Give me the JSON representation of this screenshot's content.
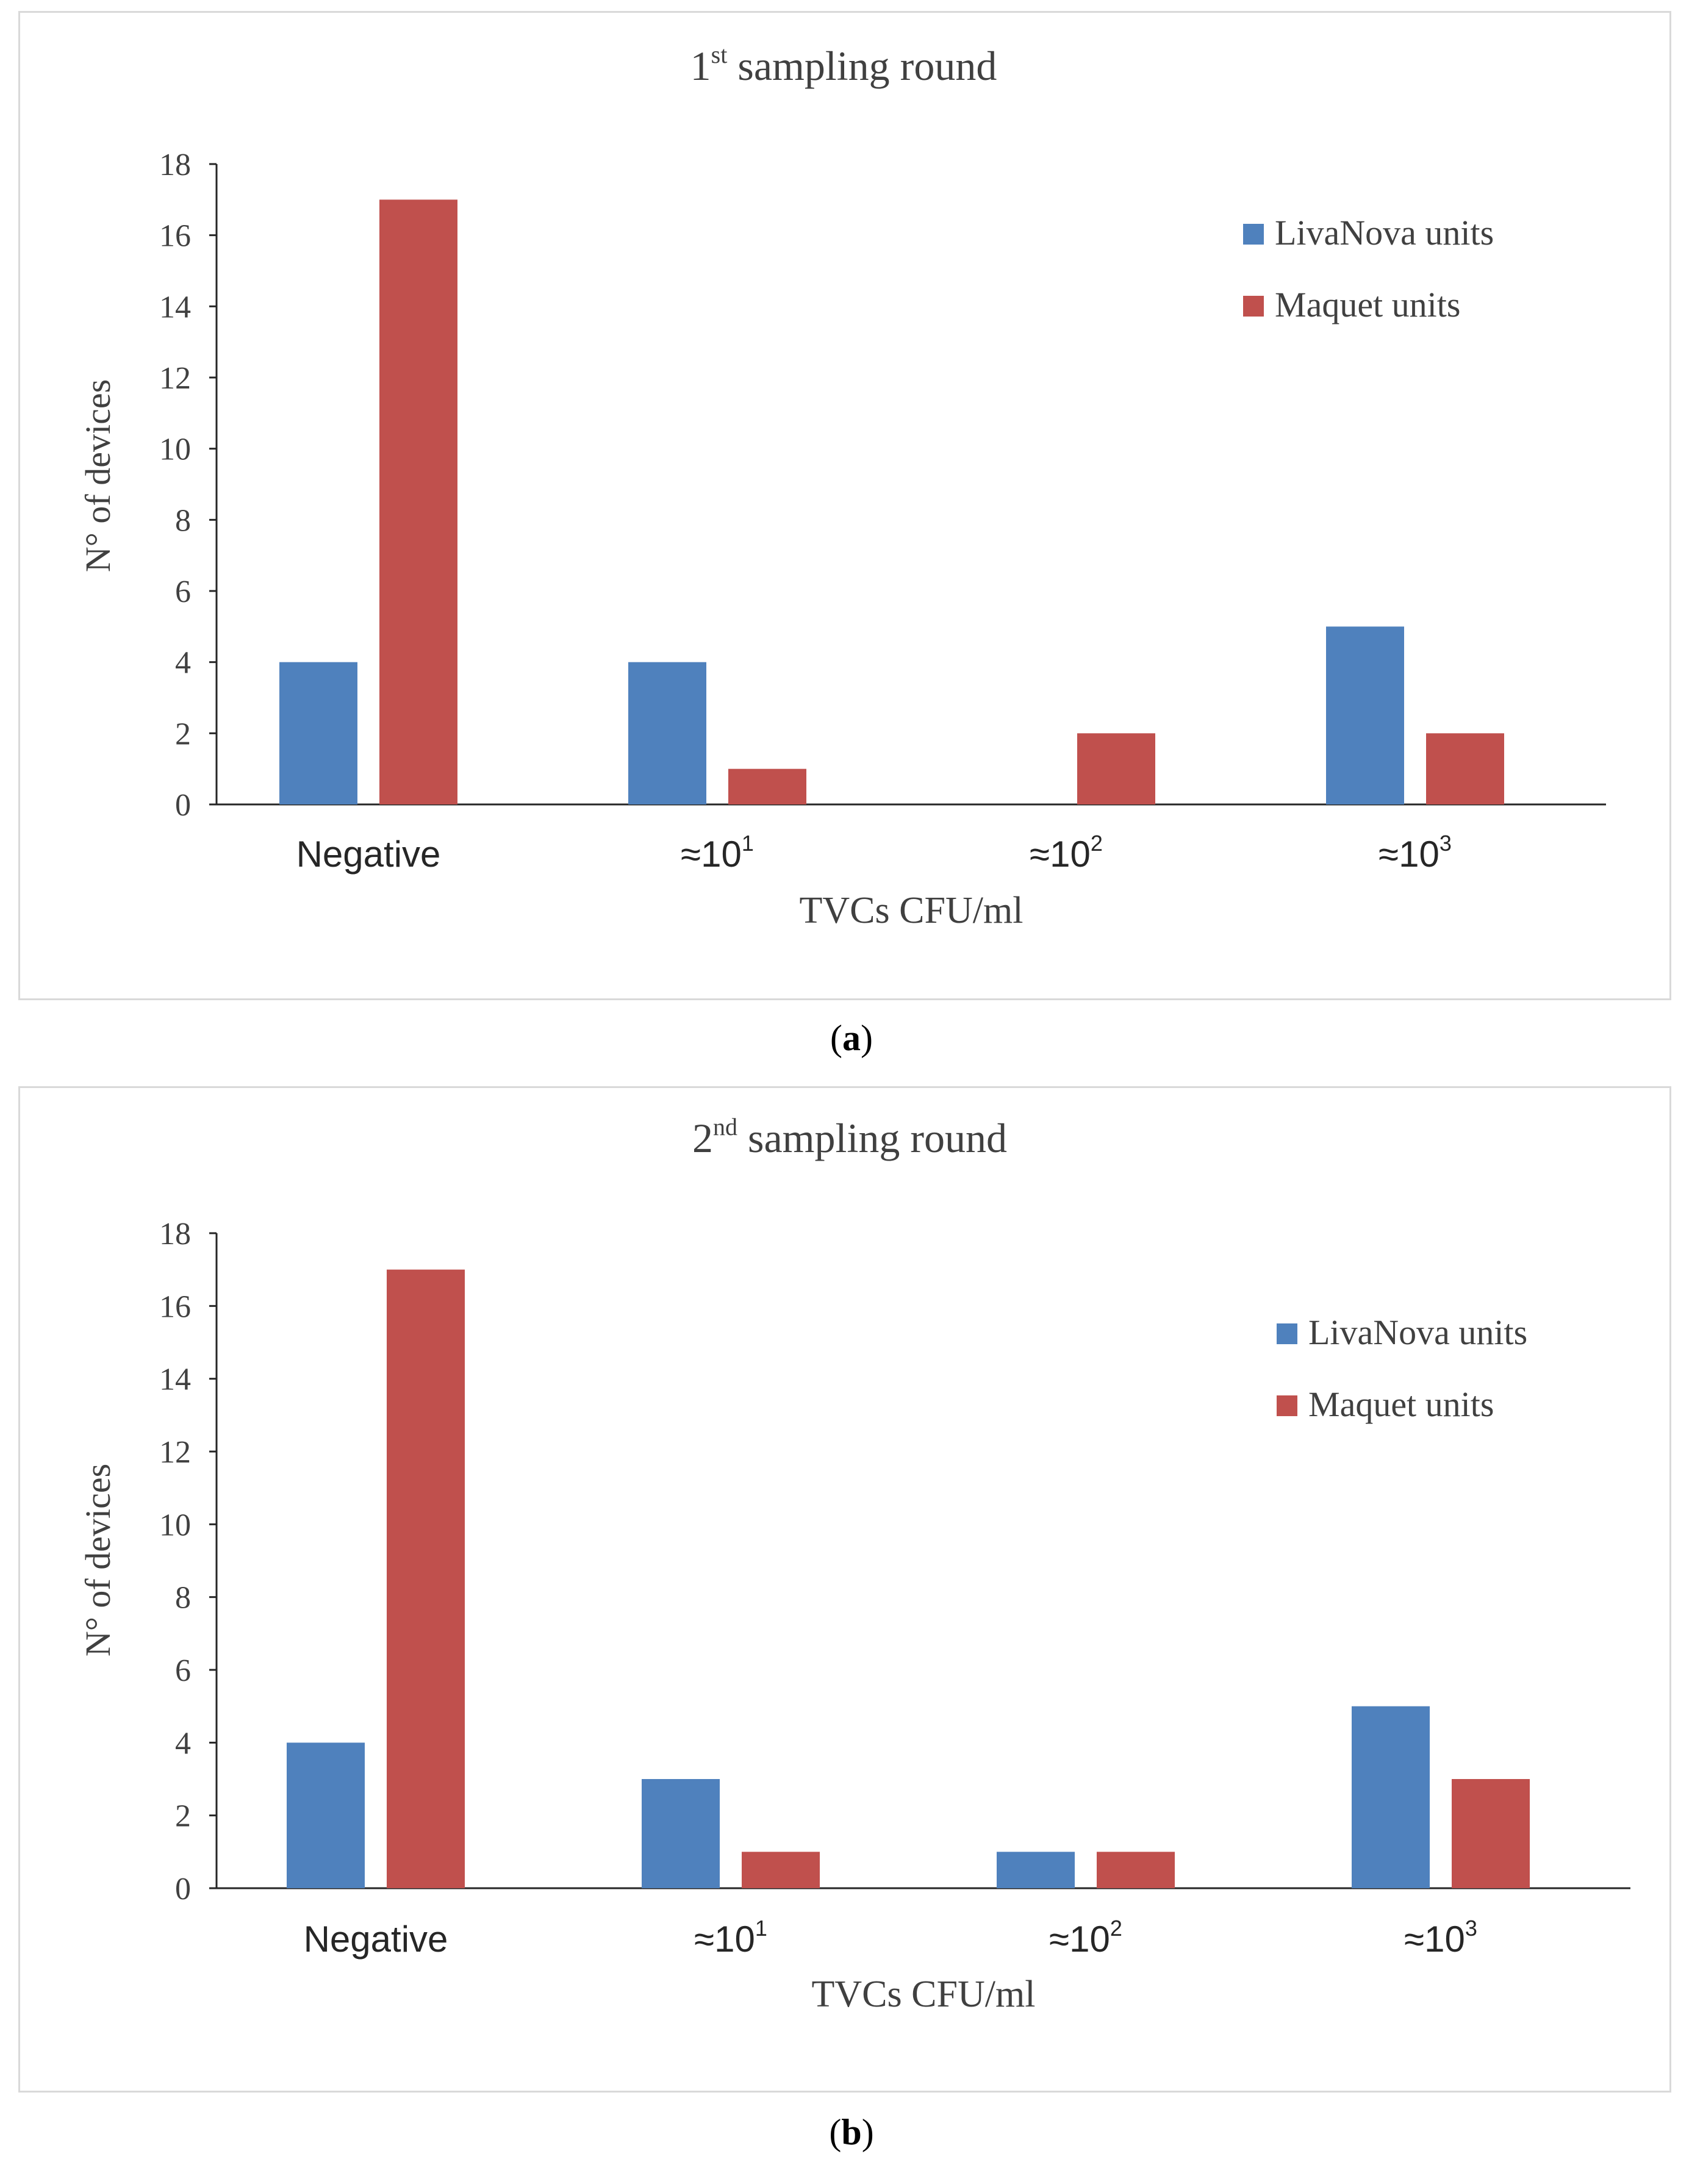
{
  "chart_data": [
    {
      "type": "bar",
      "title_main": "1",
      "title_sup": "st",
      "title_rest": " sampling round",
      "caption_letter": "a",
      "categories": [
        {
          "base": "Negative",
          "sup": ""
        },
        {
          "base": "≈10",
          "sup": "1"
        },
        {
          "base": "≈10",
          "sup": "2"
        },
        {
          "base": "≈10",
          "sup": "3"
        }
      ],
      "series": [
        {
          "name": "LivaNova units",
          "color": "#4f81bd",
          "values": [
            4,
            4,
            0,
            5
          ]
        },
        {
          "name": "Maquet units",
          "color": "#c0504d",
          "values": [
            17,
            1,
            2,
            2
          ]
        }
      ],
      "xlabel": "TVCs CFU/ml",
      "ylabel": "N° of devices",
      "ylim": [
        0,
        18
      ],
      "yticks": [
        0,
        2,
        4,
        6,
        8,
        10,
        12,
        14,
        16,
        18
      ],
      "legend": "top-right"
    },
    {
      "type": "bar",
      "title_main": "2",
      "title_sup": "nd",
      "title_rest": " sampling round",
      "caption_letter": "b",
      "categories": [
        {
          "base": "Negative",
          "sup": ""
        },
        {
          "base": "≈10",
          "sup": "1"
        },
        {
          "base": "≈10",
          "sup": "2"
        },
        {
          "base": "≈10",
          "sup": "3"
        }
      ],
      "series": [
        {
          "name": "LivaNova units",
          "color": "#4f81bd",
          "values": [
            4,
            3,
            1,
            5
          ]
        },
        {
          "name": "Maquet units",
          "color": "#c0504d",
          "values": [
            17,
            1,
            1,
            3
          ]
        }
      ],
      "xlabel": "TVCs CFU/ml",
      "ylabel": "N° of devices",
      "ylim": [
        0,
        18
      ],
      "yticks": [
        0,
        2,
        4,
        6,
        8,
        10,
        12,
        14,
        16,
        18
      ],
      "legend": "top-right"
    }
  ]
}
